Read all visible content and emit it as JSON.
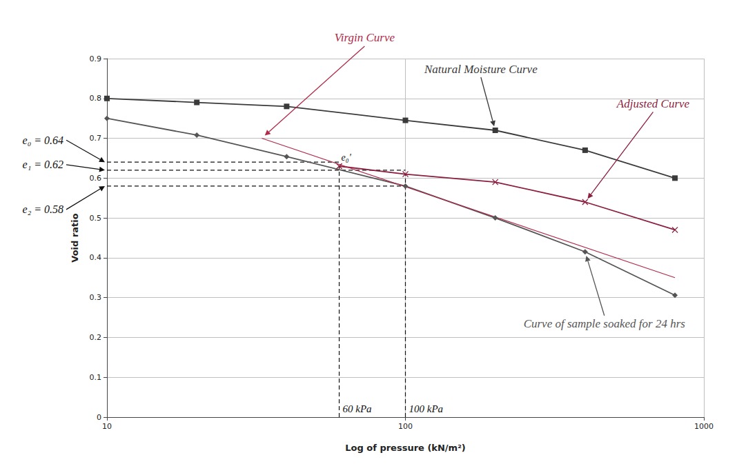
{
  "chart_data": {
    "type": "line",
    "x_label": "Log of pressure (kN/m²)",
    "y_label": "Void ratio",
    "log": "x",
    "grid": true,
    "xlim": [
      10,
      1000
    ],
    "xticks": [
      10,
      100,
      1000
    ],
    "ylim": [
      0,
      0.9
    ],
    "yticks": [
      0,
      0.1,
      0.2,
      0.3,
      0.4,
      0.5,
      0.6,
      0.7,
      0.8,
      0.9
    ],
    "series": [
      {
        "name": "Natural Moisture Curve",
        "color": "#3a3a3a",
        "marker": "square",
        "line_style": "solid",
        "x": [
          10,
          20,
          40,
          100,
          200,
          400,
          800
        ],
        "values": [
          0.8,
          0.79,
          0.78,
          0.745,
          0.72,
          0.67,
          0.6
        ],
        "note_at": {
          "x": 179,
          "y": 0.874
        }
      },
      {
        "name": "Curve of sample soaked for 24 hrs",
        "color": "#555555",
        "marker": "diamond",
        "line_style": "solid",
        "x": [
          10,
          20,
          40,
          100,
          200,
          400,
          800
        ],
        "values": [
          0.75,
          0.708,
          0.654,
          0.58,
          0.5,
          0.415,
          0.306
        ],
        "note_at": {
          "x": 464,
          "y": 0.234
        }
      },
      {
        "name": "Adjusted Curve",
        "color": "#8b1f3f",
        "marker": "x",
        "line_style": "solid",
        "x": [
          60,
          100,
          200,
          400,
          800
        ],
        "values": [
          0.63,
          0.61,
          0.59,
          0.54,
          0.47
        ],
        "note_at": {
          "x": 676,
          "y": 0.787
        }
      },
      {
        "name": "Virgin Curve",
        "color": "#b02a4a",
        "marker": "none",
        "line_style": "solid",
        "x": [
          33,
          800
        ],
        "values": [
          0.7,
          0.35
        ],
        "note_at": {
          "x": 73,
          "y": 0.952
        }
      }
    ],
    "reference_lines": {
      "horizontal": [
        {
          "label": "e₀ = 0.64",
          "y": 0.64,
          "x_to": 60
        },
        {
          "label": "e₁ = 0.62",
          "y": 0.62,
          "x_to": 100
        },
        {
          "label": "e₂ = 0.58",
          "y": 0.58,
          "x_to": 100
        }
      ],
      "vertical": [
        {
          "label": "60 kPa",
          "x": 60,
          "y_to": 0.63
        },
        {
          "label": "100 kPa",
          "x": 100,
          "y_to": 0.61
        }
      ]
    },
    "annotations": [
      {
        "text": "e₀'",
        "x": 60,
        "y": 0.63
      }
    ]
  }
}
